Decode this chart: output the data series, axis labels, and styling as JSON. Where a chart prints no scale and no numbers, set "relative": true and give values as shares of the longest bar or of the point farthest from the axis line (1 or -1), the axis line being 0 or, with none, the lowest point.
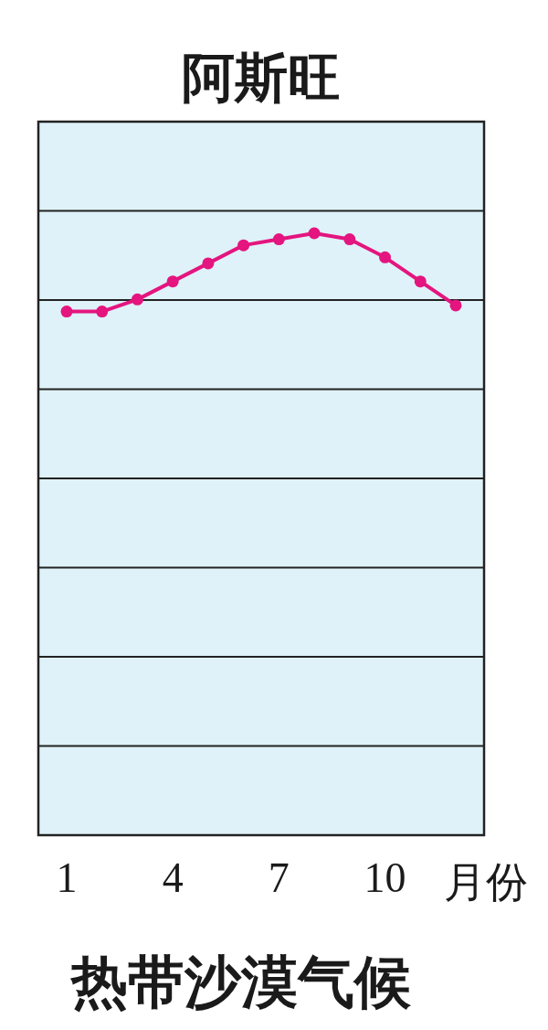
{
  "chart_data": {
    "type": "line",
    "title": "阿斯旺",
    "xlabel": "月份",
    "categories": [
      "1",
      null,
      null,
      "4",
      null,
      null,
      "7",
      null,
      null,
      "10",
      null,
      null
    ],
    "series": [
      {
        "color": "#e4157f",
        "values": [
          0.87,
          0.87,
          0.89,
          0.92,
          0.95,
          0.98,
          0.99,
          1,
          0.99,
          0.96,
          0.92,
          0.88
        ]
      }
    ],
    "relative": true,
    "grid": true,
    "marker": "circle",
    "annotations": [
      "热带沙漠气候"
    ]
  }
}
